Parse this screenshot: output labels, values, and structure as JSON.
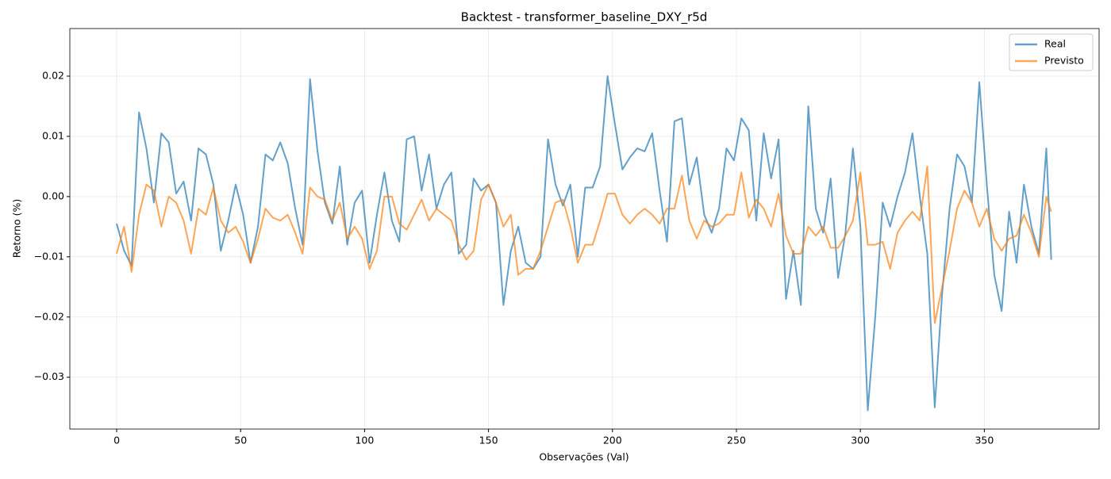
{
  "chart_data": {
    "type": "line",
    "title": "Backtest - transformer_baseline_DXY_r5d",
    "xlabel": "Observações (Val)",
    "ylabel": "Retorno (%)",
    "x": [
      0,
      3,
      6,
      9,
      12,
      15,
      18,
      21,
      24,
      27,
      30,
      33,
      36,
      39,
      42,
      45,
      48,
      51,
      54,
      57,
      60,
      63,
      66,
      69,
      72,
      75,
      78,
      81,
      84,
      87,
      90,
      93,
      96,
      99,
      102,
      105,
      108,
      111,
      114,
      117,
      120,
      123,
      126,
      129,
      132,
      135,
      138,
      141,
      144,
      147,
      150,
      153,
      156,
      159,
      162,
      165,
      168,
      171,
      174,
      177,
      180,
      183,
      186,
      189,
      192,
      195,
      198,
      201,
      204,
      207,
      210,
      213,
      216,
      219,
      222,
      225,
      228,
      231,
      234,
      237,
      240,
      243,
      246,
      249,
      252,
      255,
      258,
      261,
      264,
      267,
      270,
      273,
      276,
      279,
      282,
      285,
      288,
      291,
      294,
      297,
      300,
      303,
      306,
      309,
      312,
      315,
      318,
      321,
      324,
      327,
      330,
      333,
      336,
      339,
      342,
      345,
      348,
      351,
      354,
      357,
      360,
      363,
      366,
      369,
      372,
      375,
      377
    ],
    "series": [
      {
        "name": "Real",
        "color": "#1f77b4",
        "values": [
          -0.0045,
          -0.009,
          -0.0115,
          0.014,
          0.008,
          -0.001,
          0.0105,
          0.009,
          0.0005,
          0.0025,
          -0.004,
          0.008,
          0.007,
          0.002,
          -0.009,
          -0.004,
          0.002,
          -0.003,
          -0.011,
          -0.005,
          0.007,
          0.006,
          0.009,
          0.0055,
          -0.002,
          -0.008,
          0.0195,
          0.0075,
          -0.001,
          -0.0045,
          0.005,
          -0.008,
          -0.001,
          0.001,
          -0.011,
          -0.003,
          0.004,
          -0.004,
          -0.0075,
          0.0095,
          0.01,
          0.001,
          0.007,
          -0.002,
          0.002,
          0.004,
          -0.0095,
          -0.008,
          0.003,
          0.001,
          0.002,
          -0.001,
          -0.018,
          -0.009,
          -0.005,
          -0.011,
          -0.012,
          -0.01,
          0.0095,
          0.002,
          -0.0015,
          0.002,
          -0.01,
          0.0015,
          0.0015,
          0.005,
          0.02,
          0.012,
          0.0045,
          0.0065,
          0.008,
          0.0075,
          0.0105,
          0.001,
          -0.0075,
          0.0125,
          0.013,
          0.002,
          0.0065,
          -0.003,
          -0.006,
          -0.002,
          0.008,
          0.006,
          0.013,
          0.011,
          -0.004,
          0.0105,
          0.003,
          0.0095,
          -0.017,
          -0.009,
          -0.018,
          0.015,
          -0.002,
          -0.006,
          0.003,
          -0.0135,
          -0.006,
          0.008,
          -0.005,
          -0.0355,
          -0.02,
          -0.001,
          -0.005,
          0.0,
          0.004,
          0.0105,
          0.0,
          -0.0095,
          -0.035,
          -0.016,
          -0.002,
          0.007,
          0.005,
          -0.001,
          0.019,
          0.002,
          -0.013,
          -0.019,
          -0.0025,
          -0.011,
          0.002,
          -0.005,
          -0.0095,
          0.008,
          -0.0105
        ]
      },
      {
        "name": "Previsto",
        "color": "#ff7f0e",
        "values": [
          -0.0095,
          -0.005,
          -0.0125,
          -0.003,
          0.002,
          0.001,
          -0.005,
          0.0,
          -0.001,
          -0.004,
          -0.0095,
          -0.002,
          -0.003,
          0.0015,
          -0.004,
          -0.006,
          -0.005,
          -0.0075,
          -0.011,
          -0.007,
          -0.002,
          -0.0035,
          -0.004,
          -0.003,
          -0.006,
          -0.0095,
          0.0015,
          0.0,
          -0.0005,
          -0.004,
          -0.001,
          -0.007,
          -0.005,
          -0.007,
          -0.012,
          -0.009,
          0.0,
          0.0,
          -0.0045,
          -0.0055,
          -0.003,
          -0.0005,
          -0.004,
          -0.002,
          -0.003,
          -0.004,
          -0.008,
          -0.0105,
          -0.009,
          -0.0005,
          0.002,
          -0.001,
          -0.005,
          -0.003,
          -0.013,
          -0.012,
          -0.012,
          -0.009,
          -0.005,
          -0.001,
          -0.0005,
          -0.005,
          -0.011,
          -0.008,
          -0.008,
          -0.004,
          0.0005,
          0.0005,
          -0.003,
          -0.0045,
          -0.003,
          -0.002,
          -0.003,
          -0.0045,
          -0.002,
          -0.002,
          0.0035,
          -0.004,
          -0.007,
          -0.004,
          -0.005,
          -0.0045,
          -0.003,
          -0.003,
          0.004,
          -0.0035,
          -0.0005,
          -0.002,
          -0.005,
          0.0005,
          -0.0065,
          -0.0095,
          -0.0095,
          -0.005,
          -0.0065,
          -0.005,
          -0.0085,
          -0.0085,
          -0.0065,
          -0.004,
          0.004,
          -0.008,
          -0.008,
          -0.0075,
          -0.012,
          -0.006,
          -0.004,
          -0.0025,
          -0.004,
          0.005,
          -0.021,
          -0.015,
          -0.009,
          -0.002,
          0.001,
          -0.001,
          -0.005,
          -0.002,
          -0.007,
          -0.009,
          -0.007,
          -0.0065,
          -0.003,
          -0.006,
          -0.01,
          0.0,
          -0.0025
        ]
      }
    ],
    "xlim": [
      -18.9,
      396.3
    ],
    "ylim": [
      -0.0386,
      0.0279
    ],
    "xticks": [
      0,
      50,
      100,
      150,
      200,
      250,
      300,
      350
    ],
    "yticks": [
      {
        "value": -0.03,
        "label": "−0.03"
      },
      {
        "value": -0.02,
        "label": "−0.02"
      },
      {
        "value": -0.01,
        "label": "−0.01"
      },
      {
        "value": 0,
        "label": "0.00"
      },
      {
        "value": 0.01,
        "label": "0.01"
      },
      {
        "value": 0.02,
        "label": "0.02"
      }
    ],
    "grid": true,
    "legend": "upper-right"
  }
}
